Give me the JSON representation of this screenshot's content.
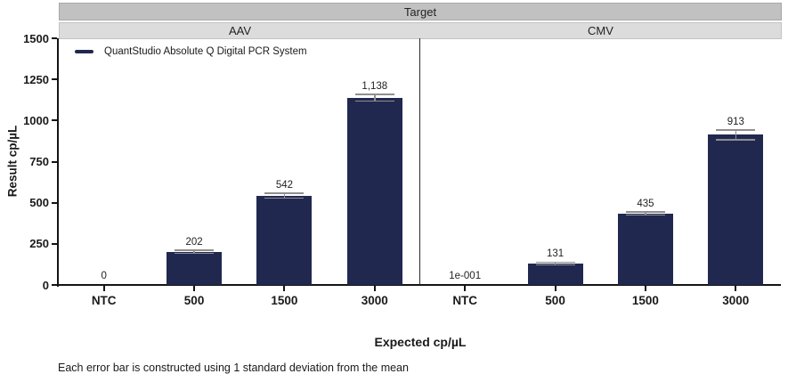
{
  "header": {
    "title": "Target"
  },
  "legend": {
    "label": "QuantStudio Absolute Q Digital PCR System"
  },
  "footnote": "Each error bar is constructed using 1 standard deviation from the mean",
  "colors": {
    "bar": "#212850",
    "error_bar": "#8f8f8f",
    "band_dark": "#c1c1c1",
    "band_light": "#dcdcdc",
    "axis": "#141414"
  },
  "chart_data": {
    "type": "bar",
    "title": "Target",
    "xlabel": "Expected cp/µL",
    "ylabel": "Result cp/µL",
    "ylim": [
      0,
      1500
    ],
    "yticks": [
      0,
      250,
      500,
      750,
      1000,
      1250,
      1500
    ],
    "grid": false,
    "legend_position": "top-left",
    "series_name": "QuantStudio Absolute Q Digital PCR System",
    "categories": [
      "NTC",
      "500",
      "1500",
      "3000"
    ],
    "error_bar_note": "1 standard deviation from the mean",
    "panels": [
      {
        "label": "AAV",
        "values": [
          0,
          202,
          542,
          1138
        ],
        "value_labels": [
          "0",
          "202",
          "542",
          "1,138"
        ],
        "sd_est": [
          0,
          10,
          15,
          20
        ]
      },
      {
        "label": "CMV",
        "values": [
          0.1,
          131,
          435,
          913
        ],
        "value_labels": [
          "1e-001",
          "131",
          "435",
          "913"
        ],
        "sd_est": [
          0,
          8,
          10,
          30
        ]
      }
    ]
  }
}
